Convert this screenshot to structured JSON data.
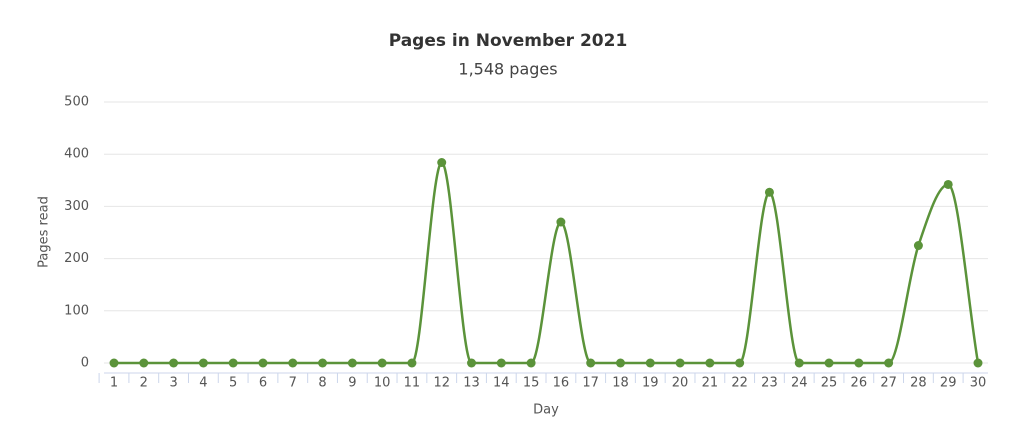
{
  "chart_data": {
    "type": "line",
    "title": "Pages in November 2021",
    "subtitle": "1,548 pages",
    "x_label": "Day",
    "y_label": "Pages read",
    "x": [
      1,
      2,
      3,
      4,
      5,
      6,
      7,
      8,
      9,
      10,
      11,
      12,
      13,
      14,
      15,
      16,
      17,
      18,
      19,
      20,
      21,
      22,
      23,
      24,
      25,
      26,
      27,
      28,
      29,
      30
    ],
    "series": [
      {
        "name": "Pages read",
        "color": "#5b933a",
        "values": [
          0,
          0,
          0,
          0,
          0,
          0,
          0,
          0,
          0,
          0,
          0,
          384,
          0,
          0,
          0,
          270,
          0,
          0,
          0,
          0,
          0,
          0,
          327,
          0,
          0,
          0,
          0,
          225,
          342,
          0
        ]
      }
    ],
    "xlim": [
      1,
      30
    ],
    "xticks": [
      1,
      2,
      3,
      4,
      5,
      6,
      7,
      8,
      9,
      10,
      11,
      12,
      13,
      14,
      15,
      16,
      17,
      18,
      19,
      20,
      21,
      22,
      23,
      24,
      25,
      26,
      27,
      28,
      29,
      30
    ],
    "ylim": [
      0,
      500
    ],
    "yticks": [
      0,
      100,
      200,
      300,
      400,
      500
    ],
    "grid": true
  }
}
